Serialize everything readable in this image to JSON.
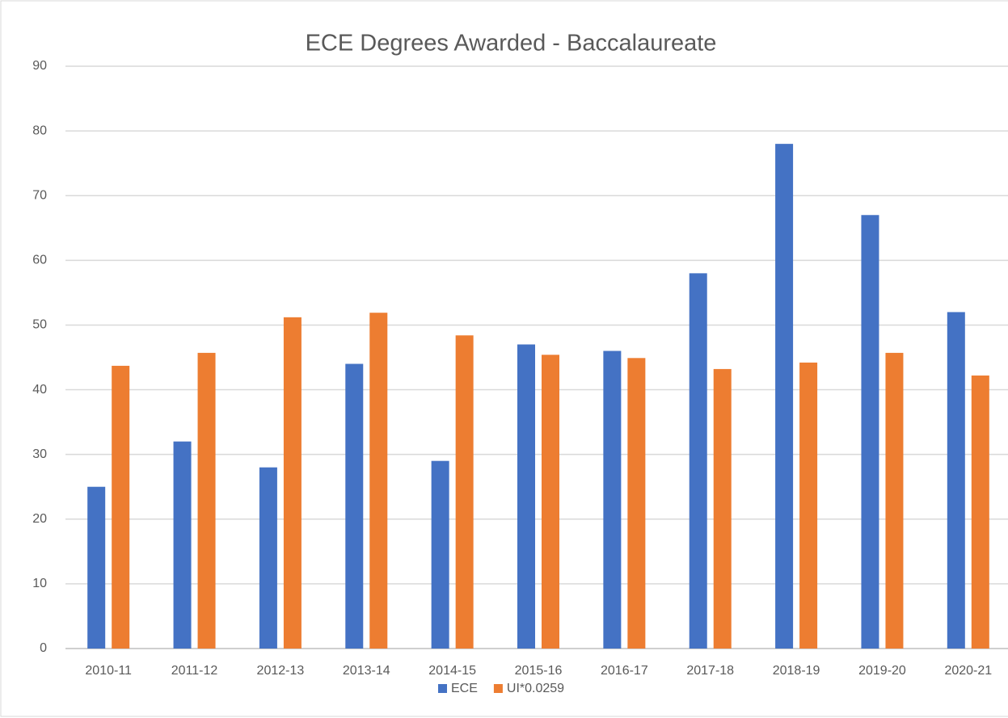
{
  "chart_data": {
    "type": "bar",
    "title": "ECE Degrees Awarded - Baccalaureate",
    "categories": [
      "2010-11",
      "2011-12",
      "2012-13",
      "2013-14",
      "2014-15",
      "2015-16",
      "2016-17",
      "2017-18",
      "2018-19",
      "2019-20",
      "2020-21"
    ],
    "series": [
      {
        "name": "ECE",
        "color": "#4472c4",
        "values": [
          25,
          32,
          28,
          44,
          29,
          47,
          46,
          58,
          78,
          67,
          52
        ]
      },
      {
        "name": "UI*0.0259",
        "color": "#ed7d31",
        "values": [
          43.7,
          45.7,
          51.2,
          51.9,
          48.4,
          45.4,
          44.9,
          43.2,
          44.2,
          45.7,
          42.2
        ]
      }
    ],
    "ylim": [
      0,
      90
    ],
    "yticks": [
      0,
      10,
      20,
      30,
      40,
      50,
      60,
      70,
      80,
      90
    ],
    "grid": true,
    "legend": "bottom"
  }
}
